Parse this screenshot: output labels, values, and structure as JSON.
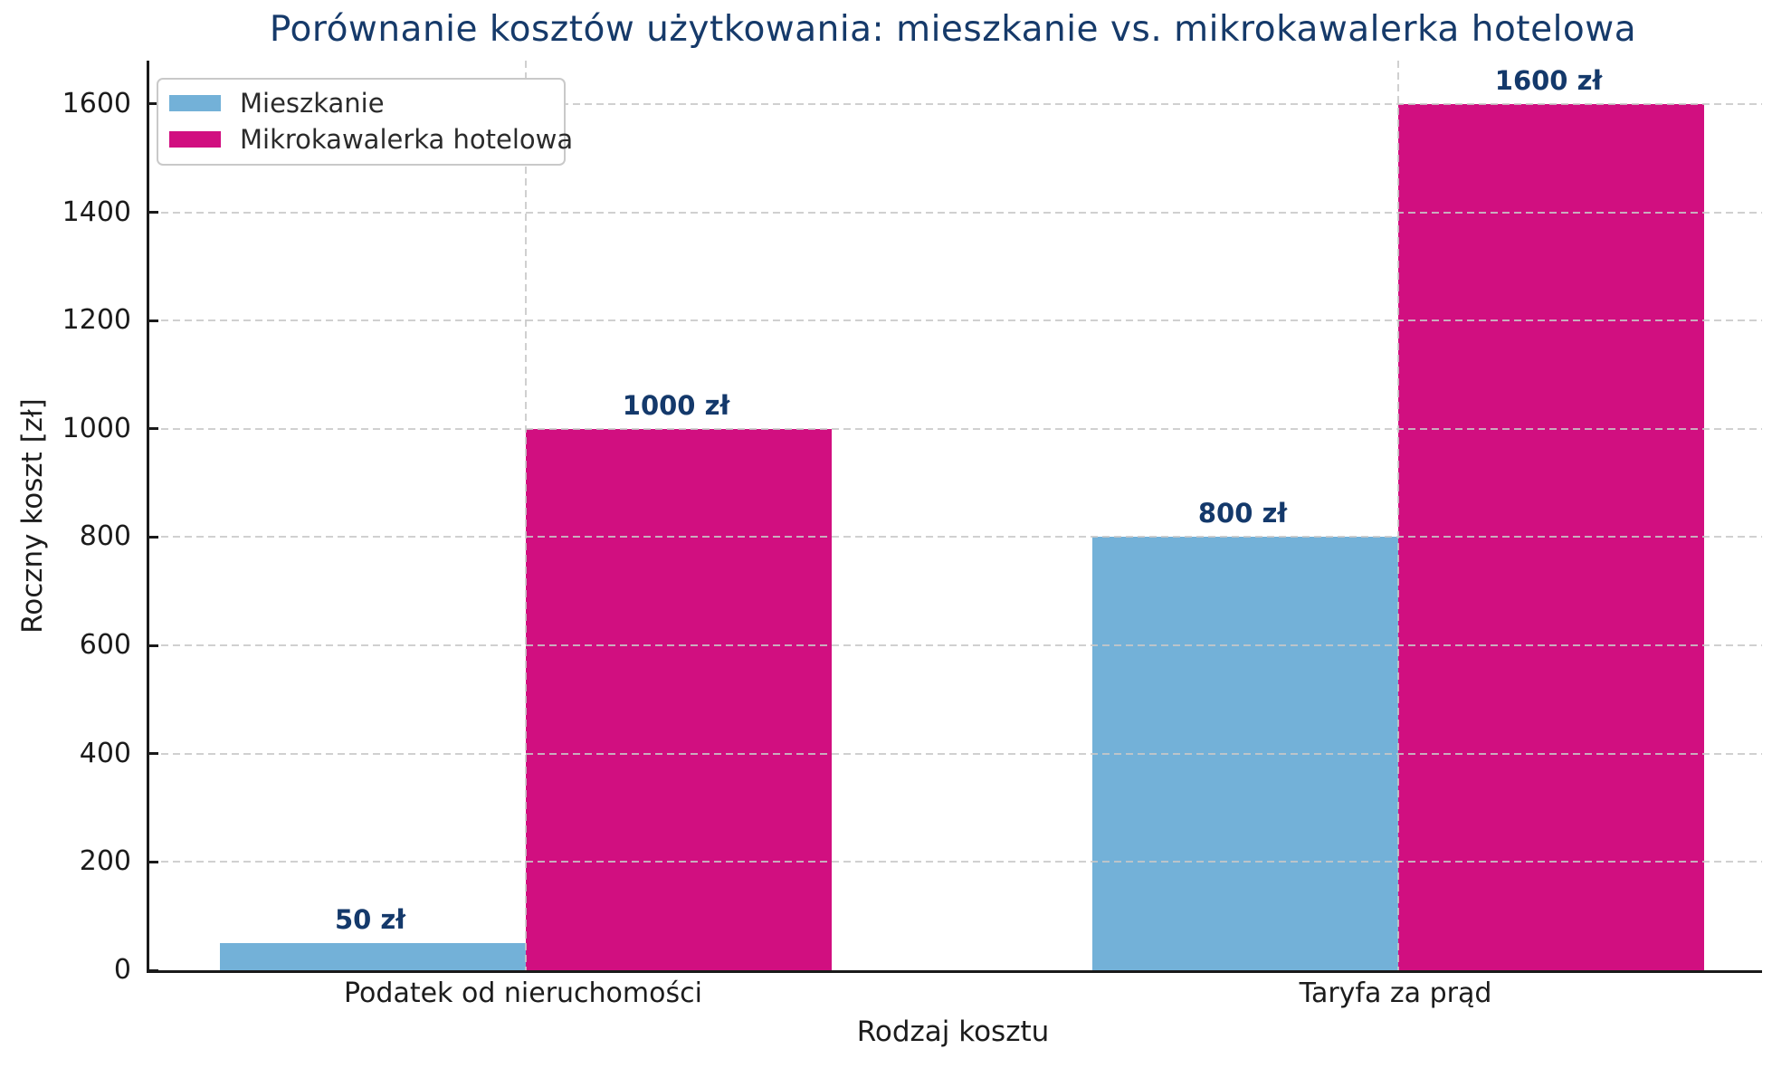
{
  "chart_data": {
    "type": "bar",
    "title": "Porównanie kosztów użytkowania: mieszkanie vs. mikrokawalerka hotelowa",
    "xlabel": "Rodzaj kosztu",
    "ylabel": "Roczny koszt [zł]",
    "categories": [
      "Podatek od nieruchomości",
      "Taryfa za prąd"
    ],
    "series": [
      {
        "name": "Mieszkanie",
        "color": "#73b1d8",
        "values": [
          50,
          800
        ],
        "value_labels": [
          "50 zł",
          "800 zł"
        ]
      },
      {
        "name": "Mikrokawalerka hotelowa",
        "color": "#d10f80",
        "values": [
          1000,
          1600
        ],
        "value_labels": [
          "1000 zł",
          "1600 zł"
        ]
      }
    ],
    "yticks": [
      0,
      200,
      400,
      600,
      800,
      1000,
      1200,
      1400,
      1600
    ],
    "ylim": [
      0,
      1680
    ],
    "grid": true,
    "grid_style": "dashed",
    "legend_position": "upper-left",
    "colors": {
      "title": "#163a6a",
      "value_label": "#14396b",
      "tick_text": "#1c1c1c",
      "grid": "#c8c8c8",
      "spine": "#1a1a1a",
      "background": "#ffffff"
    }
  }
}
